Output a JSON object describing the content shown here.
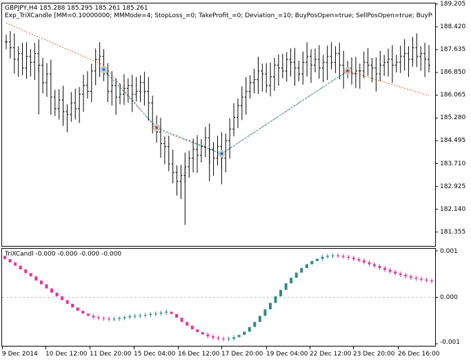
{
  "main_window": {
    "symbol_line": "GBPJPY,H4  185.288 185.295 185.261 185.261",
    "expert_line": "Exp_TriXCandle [MM=0.10000000; MMMode=4; StopLoss_=0; TakeProfit_=0; Deviation_=10; BuyPosOpen=true; SellPosOpen=true; BuyPosClose="
  },
  "indicator_window": {
    "title": "TriXCandl -0.000 -0.000 -0.000 -0.000"
  },
  "colors": {
    "bull_candle": "#2e8b86",
    "bear_candle": "#e6329c",
    "price_bar": "#000000",
    "trend_dotted": "#e06030",
    "trade_line": "#1a9fb0",
    "zero_line": "#c0c0c0"
  },
  "chart_data": [
    {
      "type": "ohlc",
      "title": "GBPJPY,H4",
      "y_ticks": [
        "189.205",
        "188.420",
        "187.635",
        "186.850",
        "186.065",
        "185.280",
        "184.495",
        "183.710",
        "182.925",
        "182.140",
        "181.355"
      ],
      "ylim": [
        180.9,
        189.2
      ],
      "x_ticks": [
        "9 Dec 2014",
        "10 Dec 12:00",
        "11 Dec 20:00",
        "15 Dec 04:00",
        "16 Dec 12:00",
        "17 Dec 20:00",
        "19 Dec 04:00",
        "22 Dec 12:00",
        "23 Dec 20:00",
        "26 Dec 16:00"
      ],
      "trades": [
        {
          "price": 186.95,
          "bar": 24
        },
        {
          "price": 184.95,
          "bar": 37
        },
        {
          "price": 184.05,
          "bar": 53
        },
        {
          "price": 186.9,
          "bar": 84
        }
      ],
      "trend_line": [
        {
          "bar": 0,
          "price": 188.55
        },
        {
          "bar": 24,
          "price": 187.1
        },
        {
          "bar": 37,
          "price": 184.9
        },
        {
          "bar": 53,
          "price": 184.05
        },
        {
          "bar": 84,
          "price": 186.9
        },
        {
          "bar": 104,
          "price": 186.05
        }
      ],
      "bars_close": [
        187.9,
        187.7,
        187.3,
        187.5,
        187.0,
        187.4,
        187.2,
        187.5,
        187.1,
        186.5,
        186.8,
        186.0,
        185.6,
        185.9,
        185.5,
        185.4,
        185.8,
        185.6,
        186.1,
        186.4,
        186.2,
        186.9,
        187.3,
        187.4,
        186.8,
        186.2,
        186.4,
        186.0,
        186.1,
        186.3,
        186.4,
        186.1,
        186.2,
        186.5,
        186.2,
        185.8,
        185.0,
        184.8,
        184.4,
        184.3,
        183.7,
        183.4,
        183.1,
        183.3,
        183.6,
        183.9,
        184.2,
        184.0,
        184.3,
        184.6,
        184.2,
        183.9,
        184.3,
        183.9,
        184.5,
        184.9,
        185.3,
        185.7,
        186.0,
        186.2,
        186.5,
        186.6,
        186.9,
        186.8,
        186.4,
        186.7,
        187.1,
        187.0,
        186.9,
        187.3,
        187.2,
        187.0,
        186.8,
        187.2,
        187.4,
        187.1,
        187.3,
        187.0,
        187.2,
        187.4,
        187.2,
        187.5,
        187.1,
        186.9,
        187.0,
        186.8,
        186.9,
        186.9,
        187.2,
        187.1,
        187.0,
        186.8,
        187.1,
        187.2,
        187.3,
        187.1,
        187.2,
        187.4,
        187.5,
        187.3,
        187.7,
        187.4,
        187.5,
        187.3,
        187.1
      ]
    },
    {
      "type": "bar",
      "title": "TriXCandl -0.000 -0.000 -0.000 -0.000",
      "y_ticks": [
        "0.001",
        "0.000",
        "-0.001"
      ],
      "ylim": [
        -0.00103,
        0.00103
      ],
      "color_sequence_note": "pink = falling, teal = rising",
      "values": [
        0.00082,
        0.00075,
        0.00068,
        0.0006,
        0.00052,
        0.00045,
        0.00036,
        0.00028,
        0.00019,
        0.0001,
        2e-05,
        -6e-05,
        -0.00014,
        -0.00022,
        -0.00029,
        -0.00035,
        -0.0004,
        -0.00043,
        -0.00045,
        -0.00046,
        -0.00047,
        -0.00046,
        -0.00045,
        -0.00043,
        -0.00041,
        -0.0004,
        -0.00039,
        -0.00038,
        -0.00036,
        -0.00035,
        -0.00033,
        -0.00031,
        -0.00036,
        -0.00044,
        -0.00053,
        -0.00061,
        -0.00069,
        -0.00075,
        -0.0008,
        -0.00084,
        -0.00087,
        -0.00089,
        -0.0009,
        -0.00089,
        -0.00086,
        -0.00081,
        -0.00074,
        -0.00064,
        -0.00053,
        -0.0004,
        -0.00026,
        -0.00012,
        2e-05,
        0.00016,
        0.0003,
        0.00042,
        0.00053,
        0.00063,
        0.00071,
        0.00078,
        0.00083,
        0.00087,
        0.00089,
        0.0009,
        0.00089,
        0.00087,
        0.00085,
        0.00082,
        0.00079,
        0.00075,
        0.00071,
        0.00067,
        0.00063,
        0.00059,
        0.00055,
        0.00051,
        0.00048,
        0.00045,
        0.00042,
        0.0004,
        0.00038,
        0.00036,
        0.00034
      ]
    }
  ]
}
